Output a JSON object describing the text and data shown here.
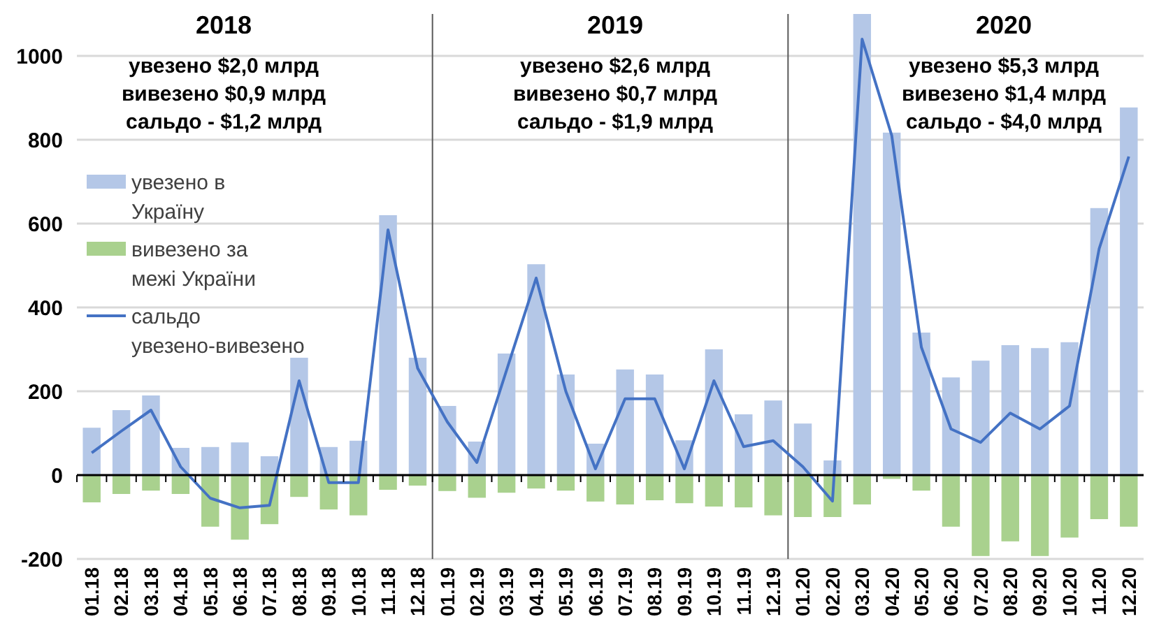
{
  "chart_data": {
    "type": "bar",
    "categories": [
      "01.18",
      "02.18",
      "03.18",
      "04.18",
      "05.18",
      "06.18",
      "07.18",
      "08.18",
      "09.18",
      "10.18",
      "11.18",
      "12.18",
      "01.19",
      "02.19",
      "03.19",
      "04.19",
      "05.19",
      "06.19",
      "07.19",
      "08.19",
      "09.19",
      "10.19",
      "11.19",
      "12.19",
      "01.20",
      "02.20",
      "03.20",
      "04.20",
      "05.20",
      "06.20",
      "07.20",
      "08.20",
      "09.20",
      "10.20",
      "11.20",
      "12.20"
    ],
    "series": [
      {
        "name": "увезено в Україну",
        "color": "#b4c7e7",
        "values": [
          113,
          155,
          190,
          65,
          67,
          78,
          45,
          280,
          67,
          82,
          620,
          280,
          165,
          80,
          290,
          503,
          240,
          75,
          252,
          240,
          83,
          300,
          145,
          178,
          123,
          35,
          1100,
          817,
          340,
          233,
          273,
          310,
          303,
          317,
          637,
          877
        ]
      },
      {
        "name": "вивезено за межі України",
        "color": "#a9d18e",
        "values": [
          -65,
          -45,
          -37,
          -45,
          -123,
          -154,
          -117,
          -52,
          -82,
          -96,
          -35,
          -25,
          -38,
          -54,
          -42,
          -32,
          -37,
          -63,
          -70,
          -60,
          -67,
          -75,
          -77,
          -96,
          -100,
          -100,
          -70,
          -9,
          -37,
          -123,
          -193,
          -158,
          -193,
          -149,
          -105,
          -123
        ]
      },
      {
        "name": "сальдо увезено-вивезено",
        "type": "line",
        "color": "#4472c4",
        "values": [
          53,
          105,
          155,
          20,
          -55,
          -78,
          -72,
          225,
          -18,
          -18,
          585,
          255,
          127,
          30,
          250,
          470,
          200,
          15,
          182,
          182,
          15,
          225,
          68,
          82,
          20,
          -62,
          1040,
          810,
          305,
          110,
          78,
          148,
          110,
          165,
          540,
          760
        ]
      }
    ],
    "ylim": [
      -200,
      1100
    ],
    "yticks": [
      -200,
      0,
      200,
      400,
      600,
      800,
      1000
    ],
    "grid": "y",
    "legend": "left",
    "line_style": "solid",
    "marker": "none",
    "stacked": true,
    "annotations": [
      "2018",
      "увезено  $2,0 млрд",
      "вивезено $0,9 млрд",
      "сальдо - $1,2 млрд",
      "2019",
      "увезено $2,6 млрд",
      "вивезено $0,7 млрд",
      "сальдо - $1,9 млрд",
      "2020",
      "увезено $5,3 млрд",
      "вивезено $1,4 млрд",
      "сальдо - $4,0 млрд"
    ]
  }
}
